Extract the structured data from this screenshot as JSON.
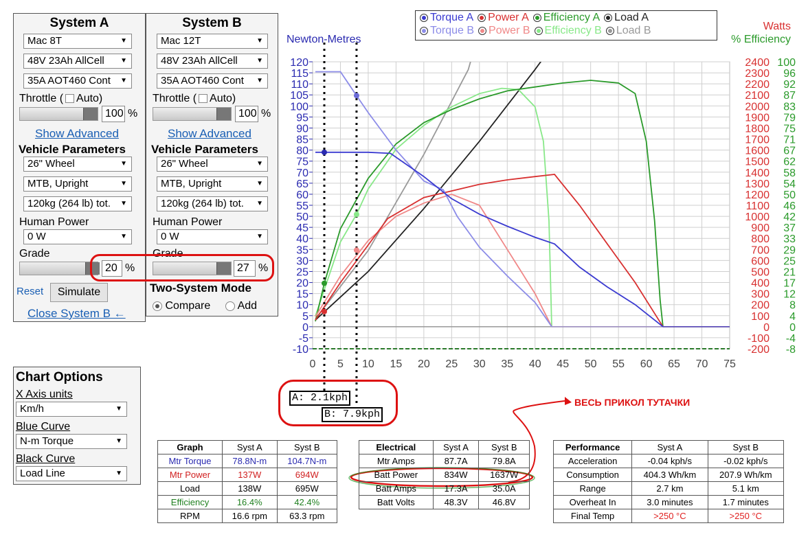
{
  "sysA": {
    "title": "System A",
    "motor": "Mac 8T",
    "battery": "48V 23Ah AllCell",
    "controller": "35A AOT460 Cont",
    "throttle_label": "Throttle (",
    "auto_label": "Auto)",
    "throttle_value": "100",
    "pct": "%",
    "show_advanced": "Show Advanced",
    "vehicle_params": "Vehicle Parameters",
    "wheel": "26\"  Wheel",
    "type": "MTB, Upright",
    "weight": "120kg (264 lb) tot.",
    "human_power_label": "Human Power",
    "human_power": "0 W",
    "grade_label": "Grade",
    "grade_value": "20",
    "reset": "Reset",
    "simulate": "Simulate",
    "close_b": "Close System B ←"
  },
  "sysB": {
    "title": "System B",
    "motor": "Mac 12T",
    "battery": "48V 23Ah AllCell",
    "controller": "35A AOT460 Cont",
    "throttle_label": "Throttle (",
    "auto_label": "Auto)",
    "throttle_value": "100",
    "pct": "%",
    "show_advanced": "Show Advanced",
    "vehicle_params": "Vehicle Parameters",
    "wheel": "26\"  Wheel",
    "type": "MTB, Upright",
    "weight": "120kg (264 lb) tot.",
    "human_power_label": "Human Power",
    "human_power": "0 W",
    "grade_label": "Grade",
    "grade_value": "27",
    "two_system_mode": "Two-System Mode",
    "compare": "Compare",
    "add": "Add"
  },
  "chart_options": {
    "title": "Chart Options",
    "x_axis_label": "X Axis units",
    "x_axis_value": "Km/h",
    "blue_label": "Blue Curve",
    "blue_value": "N-m Torque",
    "black_label": "Black Curve",
    "black_value": "Load Line"
  },
  "legend": {
    "rowA": [
      {
        "label": "Torque A",
        "color": "#3a3ad0"
      },
      {
        "label": "Power A",
        "color": "#d83030"
      },
      {
        "label": "Efficiency A",
        "color": "#2a9a2a"
      },
      {
        "label": "Load A",
        "color": "#222222"
      }
    ],
    "rowB": [
      {
        "label": "Torque B",
        "color": "#8c8ce8"
      },
      {
        "label": "Power B",
        "color": "#f08888"
      },
      {
        "label": "Efficiency B",
        "color": "#88e888"
      },
      {
        "label": "Load B",
        "color": "#999999"
      }
    ]
  },
  "annotations": {
    "speed_a": "A: 2.1kph",
    "speed_b": "B: 7.9kph",
    "note": "ВЕСЬ ПРИКОЛ ТУТАЧКИ"
  },
  "chart_data": {
    "type": "line",
    "left_axis_label": "Newton-Metres",
    "right_axis_label_1": "Watts",
    "right_axis_label_2": "% Efficiency",
    "xlim": [
      0,
      75
    ],
    "ylim": [
      -10,
      120
    ],
    "x_ticks": [
      "0",
      "5",
      "10",
      "15",
      "20",
      "25",
      "30",
      "35",
      "40",
      "45",
      "50",
      "55",
      "60",
      "65",
      "70",
      "75"
    ],
    "y_ticks": [
      "120",
      "115",
      "110",
      "105",
      "100",
      "95",
      "90",
      "85",
      "80",
      "75",
      "70",
      "65",
      "60",
      "55",
      "50",
      "45",
      "40",
      "35",
      "30",
      "25",
      "20",
      "15",
      "10",
      "5",
      "0",
      "-5",
      "-10"
    ],
    "watts_ticks": [
      "2400",
      "2300",
      "2200",
      "2100",
      "2000",
      "1900",
      "1800",
      "1700",
      "1600",
      "1500",
      "1400",
      "1300",
      "1200",
      "1100",
      "1000",
      "900",
      "800",
      "700",
      "600",
      "500",
      "400",
      "300",
      "200",
      "100",
      "0",
      "-100",
      "-200"
    ],
    "eff_ticks": [
      "100",
      "96",
      "92",
      "87",
      "83",
      "79",
      "75",
      "71",
      "67",
      "62",
      "58",
      "54",
      "50",
      "46",
      "42",
      "37",
      "33",
      "29",
      "25",
      "21",
      "17",
      "12",
      "8",
      "4",
      "0",
      "-4",
      "-8"
    ],
    "marker_lines": [
      2.1,
      7.9
    ],
    "series": [
      {
        "name": "Torque A",
        "color": "#3a3ad0",
        "points": [
          [
            0.5,
            79
          ],
          [
            2,
            79
          ],
          [
            5,
            79
          ],
          [
            10,
            79
          ],
          [
            14,
            78.5
          ],
          [
            20,
            68
          ],
          [
            25,
            58
          ],
          [
            30,
            51
          ],
          [
            35,
            45.5
          ],
          [
            40,
            40.5
          ],
          [
            43.5,
            37.5
          ],
          [
            48,
            27
          ],
          [
            53,
            18
          ],
          [
            58,
            10
          ],
          [
            63,
            0
          ]
        ]
      },
      {
        "name": "Torque B",
        "color": "#8c8ce8",
        "points": [
          [
            0.5,
            115.5
          ],
          [
            3,
            115.5
          ],
          [
            5,
            115.5
          ],
          [
            7.9,
            104.7
          ],
          [
            10,
            97
          ],
          [
            15,
            80
          ],
          [
            20,
            66
          ],
          [
            23.5,
            62
          ],
          [
            26,
            50
          ],
          [
            30,
            36
          ],
          [
            35,
            23
          ],
          [
            40,
            11
          ],
          [
            43,
            0
          ]
        ]
      },
      {
        "name": "Power A",
        "color": "#d83030",
        "watts": [
          [
            0.5,
            60
          ],
          [
            5,
            400
          ],
          [
            10,
            740
          ],
          [
            13.5,
            980
          ],
          [
            20,
            1170
          ],
          [
            30,
            1290
          ],
          [
            35,
            1330
          ],
          [
            40,
            1360
          ],
          [
            43.5,
            1380
          ],
          [
            48,
            1100
          ],
          [
            53,
            750
          ],
          [
            58,
            400
          ],
          [
            63,
            0
          ]
        ]
      },
      {
        "name": "Power B",
        "color": "#f08888",
        "watts": [
          [
            0.5,
            90
          ],
          [
            5,
            460
          ],
          [
            10,
            780
          ],
          [
            15,
            1000
          ],
          [
            20,
            1120
          ],
          [
            25,
            1200
          ],
          [
            30,
            1100
          ],
          [
            35,
            700
          ],
          [
            40,
            300
          ],
          [
            43,
            0
          ]
        ]
      },
      {
        "name": "Efficiency A",
        "color": "#2a9a2a",
        "eff": [
          [
            0.5,
            2
          ],
          [
            2.1,
            16.4
          ],
          [
            5,
            37
          ],
          [
            10,
            56
          ],
          [
            15,
            69
          ],
          [
            20,
            77
          ],
          [
            25,
            82
          ],
          [
            30,
            86
          ],
          [
            35,
            89
          ],
          [
            40,
            90.5
          ],
          [
            45,
            92
          ],
          [
            50,
            93
          ],
          [
            55,
            92
          ],
          [
            58,
            88
          ],
          [
            60,
            70
          ],
          [
            61.5,
            40
          ],
          [
            62.5,
            10
          ],
          [
            63,
            0
          ]
        ]
      },
      {
        "name": "Efficiency B",
        "color": "#88e888",
        "eff": [
          [
            0.5,
            4
          ],
          [
            5,
            32
          ],
          [
            7.9,
            42.4
          ],
          [
            10,
            52
          ],
          [
            15,
            67
          ],
          [
            20,
            76
          ],
          [
            25,
            83
          ],
          [
            30,
            88
          ],
          [
            34,
            90
          ],
          [
            37,
            89.5
          ],
          [
            40,
            83
          ],
          [
            41.5,
            70
          ],
          [
            42.5,
            40
          ],
          [
            43,
            0
          ]
        ]
      },
      {
        "name": "Load A",
        "color": "#222222",
        "watts": [
          [
            0.5,
            60
          ],
          [
            10,
            500
          ],
          [
            20,
            1070
          ],
          [
            30,
            1680
          ],
          [
            40,
            2330
          ],
          [
            41.3,
            2420
          ]
        ]
      },
      {
        "name": "Load B",
        "color": "#999999",
        "watts": [
          [
            0.5,
            70
          ],
          [
            10,
            690
          ],
          [
            20,
            1560
          ],
          [
            28,
            2330
          ],
          [
            28.5,
            2420
          ]
        ]
      }
    ]
  },
  "tables": {
    "graph": {
      "headers": [
        "Graph",
        "Syst A",
        "Syst B"
      ],
      "rows": [
        [
          "Mtr Torque",
          "78.8N-m",
          "104.7N-m"
        ],
        [
          "Mtr Power",
          "137W",
          "694W"
        ],
        [
          "Load",
          "138W",
          "695W"
        ],
        [
          "Efficiency",
          "16.4%",
          "42.4%"
        ],
        [
          "RPM",
          "16.6 rpm",
          "63.3 rpm"
        ]
      ],
      "row_colors": [
        "#2a2ab0",
        "#d02020",
        "#000000",
        "#208020",
        "#000000"
      ]
    },
    "electrical": {
      "headers": [
        "Electrical",
        "Syst A",
        "Syst B"
      ],
      "rows": [
        [
          "Mtr Amps",
          "87.7A",
          "79.8A"
        ],
        [
          "Batt Power",
          "834W",
          "1637W"
        ],
        [
          "Batt Amps",
          "17.3A",
          "35.0A"
        ],
        [
          "Batt Volts",
          "48.3V",
          "46.8V"
        ]
      ]
    },
    "performance": {
      "headers": [
        "Performance",
        "Syst A",
        "Syst B"
      ],
      "rows": [
        [
          "Acceleration",
          "-0.04 kph/s",
          "-0.02 kph/s"
        ],
        [
          "Consumption",
          "404.3 Wh/km",
          "207.9 Wh/km"
        ],
        [
          "Range",
          "2.7 km",
          "5.1 km"
        ],
        [
          "Overheat In",
          "3.0 minutes",
          "1.7 minutes"
        ],
        [
          "Final Temp",
          ">250 °C",
          ">250 °C"
        ]
      ]
    }
  }
}
